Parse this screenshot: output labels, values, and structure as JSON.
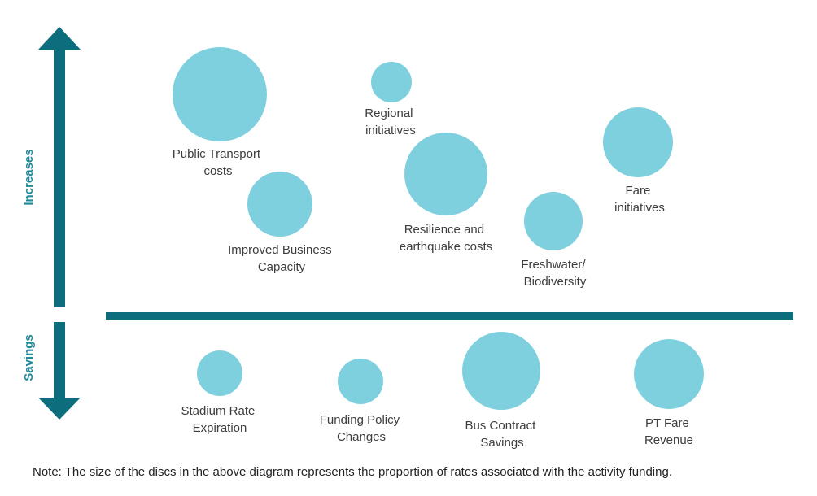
{
  "colors": {
    "axis": "#0c6d7c",
    "disc": "#7fd0de",
    "axis_label": "#1e8a9b",
    "text": "#3d3d3d"
  },
  "axis": {
    "up_label": "Increases",
    "down_label": "Savings"
  },
  "increases": [
    {
      "line1": "Public Transport",
      "line2": "costs"
    },
    {
      "line1": "Regional",
      "line2": "initiatives"
    },
    {
      "line1": "Improved Business",
      "line2": "Capacity"
    },
    {
      "line1": "Resilience and",
      "line2": "earthquake costs"
    },
    {
      "line1": "Freshwater/",
      "line2": "Biodiversity"
    },
    {
      "line1": "Fare",
      "line2": "initiatives"
    }
  ],
  "savings": [
    {
      "line1": "Stadium Rate",
      "line2": "Expiration"
    },
    {
      "line1": "Funding Policy",
      "line2": "Changes"
    },
    {
      "line1": "Bus Contract",
      "line2": "Savings"
    },
    {
      "line1": "PT Fare",
      "line2": "Revenue"
    }
  ],
  "note": "Note: The size of the discs in the above diagram represents the proportion of rates associated with the activity funding."
}
